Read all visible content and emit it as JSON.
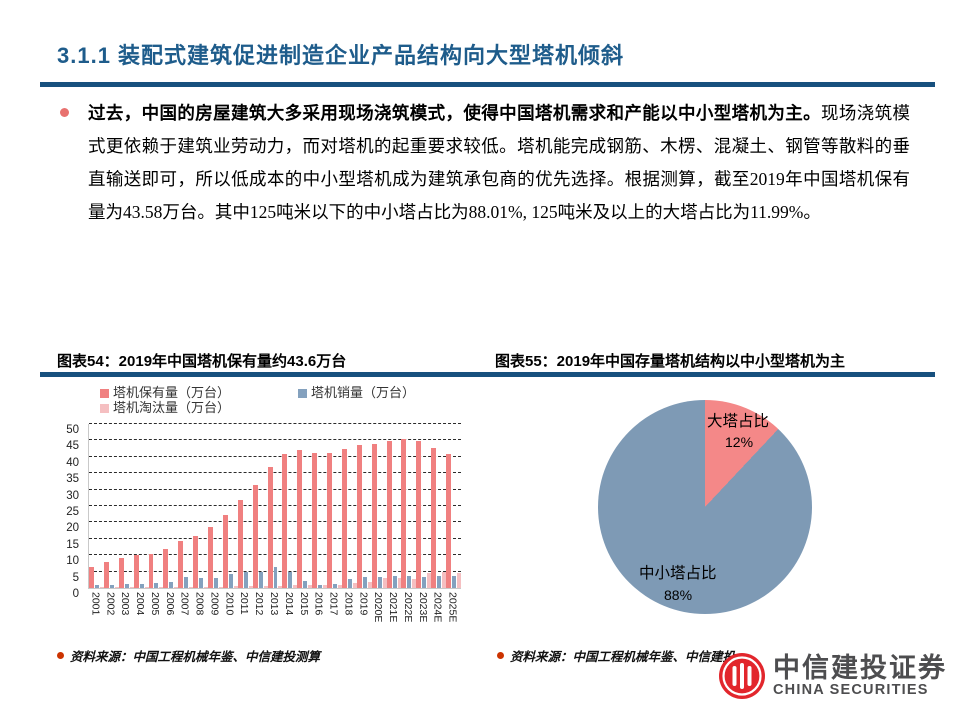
{
  "page": {
    "title": "3.1.1 装配式建筑促进制造企业产品结构向大型塔机倾斜",
    "accent_color": "#17507E",
    "title_color": "#1E5C8B",
    "bullet_color": "#E8716F",
    "source_bullet_color": "#CC3300"
  },
  "paragraph": {
    "bold_lead": "过去，中国的房屋建筑大多采用现场浇筑模式，使得中国塔机需求和产能以中小型塔机为主。",
    "body": "现场浇筑模式更依赖于建筑业劳动力，而对塔机的起重要求较低。塔机能完成钢筋、木楞、混凝土、钢管等散料的垂直输送即可，所以低成本的中小型塔机成为建筑承包商的优先选择。根据测算，截至2019年中国塔机保有量为43.58万台。其中125吨米以下的中小塔占比为88.01%, 125吨米及以上的大塔占比为11.99%。"
  },
  "figures": {
    "left_title": "图表54：2019年中国塔机保有量约43.6万台",
    "right_title": "图表55：2019年中国存量塔机结构以中小型塔机为主",
    "left_source": "资料来源：中国工程机械年鉴、中信建投测算",
    "right_source": "资料来源：中国工程机械年鉴、中信建投"
  },
  "chart_data": [
    {
      "type": "bar",
      "title": "图表54：2019年中国塔机保有量约43.6万台",
      "categories": [
        "2001",
        "2002",
        "2003",
        "2004",
        "2005",
        "2006",
        "2007",
        "2008",
        "2009",
        "2010",
        "2011",
        "2012",
        "2013",
        "2014",
        "2015",
        "2016",
        "2017",
        "2018",
        "2019",
        "2020E",
        "2021E",
        "2022E",
        "2023E",
        "2024E",
        "2025E"
      ],
      "series": [
        {
          "name": "塔机保有量（万台）",
          "color": "#F08080",
          "values": [
            6.5,
            7.8,
            9.0,
            10.0,
            10.5,
            11.8,
            14.2,
            16.0,
            18.5,
            22.3,
            26.8,
            31.5,
            37.0,
            41.0,
            42.0,
            41.2,
            41.2,
            42.5,
            43.6,
            44.0,
            44.8,
            45.3,
            44.8,
            42.8,
            41.0
          ]
        },
        {
          "name": "塔机销量（万台）",
          "color": "#84A1BE",
          "values": [
            0.9,
            1.0,
            1.1,
            1.2,
            1.4,
            1.9,
            3.3,
            3.0,
            3.0,
            4.4,
            5.0,
            5.0,
            6.4,
            5.0,
            2.0,
            1.0,
            1.3,
            2.6,
            3.5,
            3.5,
            3.6,
            3.6,
            3.5,
            3.6,
            3.6
          ]
        },
        {
          "name": "塔机淘汰量（万台）",
          "color": "#F5BFC1",
          "values": [
            0.1,
            0.1,
            0.1,
            0.2,
            0.2,
            0.3,
            0.3,
            0.4,
            0.4,
            0.5,
            0.5,
            0.5,
            0.5,
            0.8,
            1.0,
            0.8,
            1.0,
            1.5,
            1.8,
            3.0,
            3.0,
            2.8,
            4.5,
            5.0,
            4.7
          ]
        }
      ],
      "ylim": [
        0,
        50
      ],
      "yticks": [
        0,
        5,
        10,
        15,
        20,
        25,
        30,
        35,
        40,
        45,
        50
      ],
      "grid": "dashed-horizontal",
      "legend_position": "top"
    },
    {
      "type": "pie",
      "title": "图表55：2019年中国存量塔机结构以中小型塔机为主",
      "slices": [
        {
          "label": "大塔占比",
          "pct": 12,
          "pct_label": "12%",
          "color": "#F48888"
        },
        {
          "label": "中小塔占比",
          "pct": 88,
          "pct_label": "88%",
          "color": "#7E9AB5"
        }
      ],
      "start_angle": 0,
      "direction": "clockwise"
    }
  ],
  "logo": {
    "cn": "中信建投证券",
    "en": "CHINA SECURITIES",
    "red": "#E2262C",
    "text_color": "#4D4D4F",
    "mark": "citic-circle-icon"
  }
}
